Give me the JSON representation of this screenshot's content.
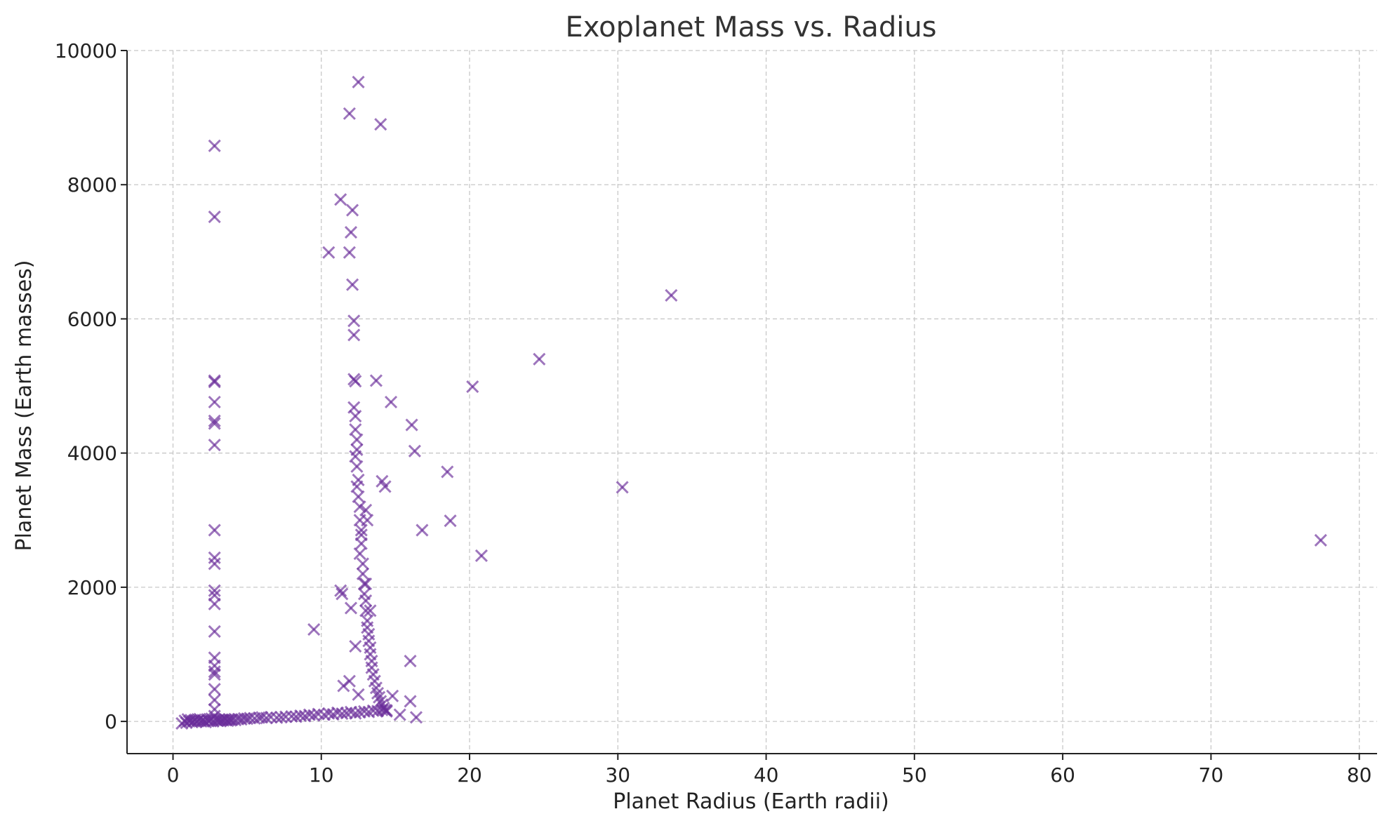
{
  "chart_data": {
    "type": "scatter",
    "title": "Exoplanet Mass vs. Radius",
    "xlabel": "Planet Radius (Earth radii)",
    "ylabel": "Planet Mass (Earth masses)",
    "xlim": [
      -3.1,
      81.2
    ],
    "ylim": [
      -480,
      10000
    ],
    "xticks": [
      0,
      10,
      20,
      30,
      40,
      50,
      60,
      70,
      80
    ],
    "yticks": [
      0,
      2000,
      4000,
      6000,
      8000,
      10000
    ],
    "xtick_labels": [
      "0",
      "10",
      "20",
      "30",
      "40",
      "50",
      "60",
      "70",
      "80"
    ],
    "ytick_labels": [
      "0",
      "2000",
      "4000",
      "6000",
      "8000",
      "10000"
    ],
    "grid": true,
    "marker": "x",
    "color": "#6a2c9a",
    "series": [
      {
        "x": [
          0.6,
          0.8,
          0.9,
          1.0,
          1.1,
          1.2,
          1.3,
          1.4,
          1.5,
          1.6,
          1.7,
          1.8,
          1.9,
          2.0,
          2.1,
          2.2,
          2.3,
          2.4,
          2.5,
          2.6,
          2.7,
          2.9,
          3.0,
          3.1,
          3.2,
          3.3,
          3.4,
          3.5,
          3.6,
          3.7,
          3.8,
          3.9,
          4.0,
          4.2,
          4.4,
          4.6,
          4.8,
          5.0,
          5.2,
          5.5,
          5.8,
          6.0,
          6.3,
          6.6,
          7.0,
          7.3,
          7.6,
          8.0,
          8.3,
          8.6,
          8.9,
          9.2,
          9.5,
          9.8,
          10.2,
          10.5,
          10.8,
          11.1,
          11.4,
          11.7,
          12.0,
          12.3,
          12.6,
          12.9,
          13.2,
          13.5,
          13.8,
          14.1,
          14.4,
          2.8,
          2.8,
          2.8,
          2.8,
          2.8,
          2.8,
          2.8,
          2.8,
          2.8,
          2.8,
          2.8,
          2.8,
          2.8,
          2.8,
          2.8,
          2.8,
          2.8,
          2.8,
          2.8,
          2.8,
          2.8,
          2.8,
          2.8,
          12.2,
          12.3,
          12.3,
          12.4,
          12.4,
          12.3,
          12.4,
          12.5,
          12.4,
          12.5,
          12.6,
          12.6,
          12.7,
          12.7,
          12.6,
          12.8,
          12.8,
          12.9,
          12.9,
          13.0,
          13.0,
          13.1,
          13.1,
          13.2,
          13.2,
          13.3,
          13.3,
          13.4,
          13.4,
          13.5,
          13.6,
          13.7,
          13.8,
          13.9,
          14.0,
          14.1,
          14.2,
          14.3,
          14.4,
          13.0,
          13.1,
          12.7,
          13.0,
          13.3,
          12.5,
          11.9,
          14.0,
          11.3,
          12.1,
          12.0,
          10.5,
          11.9,
          12.1,
          12.2,
          12.2,
          12.2,
          12.3,
          13.7,
          14.7,
          16.1,
          16.3,
          14.1,
          14.3,
          18.5,
          18.7,
          16.8,
          20.8,
          20.2,
          24.7,
          33.6,
          30.3,
          77.4,
          11.3,
          11.4,
          12.0,
          9.5,
          12.3,
          16.0,
          11.5,
          11.9,
          12.5,
          14.8,
          16.0,
          15.3,
          16.4
        ],
        "y": [
          -30,
          10,
          -20,
          30,
          0,
          20,
          -10,
          10,
          25,
          -5,
          15,
          35,
          0,
          20,
          10,
          -10,
          30,
          5,
          15,
          40,
          0,
          20,
          10,
          30,
          5,
          25,
          15,
          35,
          20,
          10,
          30,
          15,
          25,
          20,
          35,
          30,
          45,
          40,
          50,
          45,
          55,
          60,
          50,
          65,
          55,
          60,
          70,
          75,
          70,
          85,
          80,
          100,
          90,
          110,
          100,
          120,
          105,
          130,
          115,
          125,
          140,
          120,
          135,
          150,
          140,
          160,
          155,
          170,
          165,
          8580,
          7520,
          5080,
          5060,
          4760,
          4480,
          4440,
          4120,
          2850,
          2440,
          2350,
          1950,
          1880,
          1750,
          1340,
          950,
          830,
          740,
          700,
          480,
          320,
          180,
          80,
          4680,
          4550,
          4350,
          4200,
          4050,
          3950,
          3800,
          3600,
          3500,
          3350,
          3200,
          3000,
          2850,
          2650,
          2500,
          2350,
          2200,
          2050,
          1900,
          1800,
          1650,
          1500,
          1400,
          1300,
          1200,
          1100,
          1000,
          900,
          800,
          700,
          600,
          500,
          420,
          360,
          300,
          250,
          200,
          170,
          150,
          3150,
          3000,
          2780,
          2050,
          1650,
          9530,
          9060,
          8900,
          7780,
          7620,
          7290,
          6990,
          6990,
          6510,
          5970,
          5760,
          5100,
          5070,
          5080,
          4760,
          4420,
          4030,
          3580,
          3500,
          3720,
          2990,
          2850,
          2470,
          4990,
          5400,
          6350,
          3490,
          2700,
          1950,
          1900,
          1690,
          1370,
          1120,
          900,
          530,
          600,
          400,
          380,
          300,
          100,
          60
        ]
      }
    ]
  }
}
